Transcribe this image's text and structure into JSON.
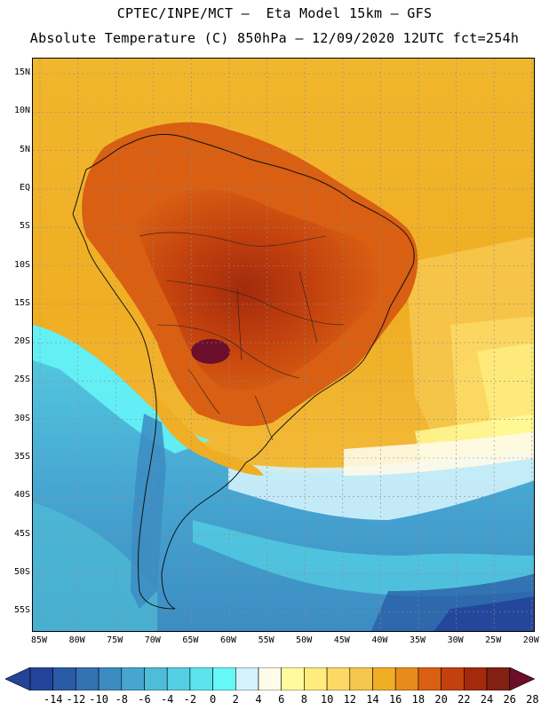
{
  "header": {
    "line1": "CPTEC/INPE/MCT –  Eta Model 15km – GFS",
    "line2": "Absolute Temperature (C) 850hPa – 12/09/2020 12UTC fct=254h"
  },
  "map": {
    "lat_labels": [
      "15N",
      "10N",
      "5N",
      "EQ",
      "5S",
      "10S",
      "15S",
      "20S",
      "25S",
      "30S",
      "35S",
      "40S",
      "45S",
      "50S",
      "55S"
    ],
    "lon_labels": [
      "85W",
      "80W",
      "75W",
      "70W",
      "65W",
      "60W",
      "55W",
      "50W",
      "45W",
      "40W",
      "35W",
      "30W",
      "25W",
      "20W"
    ],
    "ocean_regions": [
      "North Atlantic warm band",
      "Pacific cool band",
      "Southern ocean cold band"
    ],
    "hotspot": "Central South America warm core"
  },
  "colorbar": {
    "labels": [
      "-14",
      "-12",
      "-10",
      "-8",
      "-6",
      "-4",
      "-2",
      "0",
      "2",
      "4",
      "6",
      "8",
      "10",
      "12",
      "14",
      "16",
      "18",
      "20",
      "22",
      "24",
      "26",
      "28"
    ],
    "colors": [
      "#24449a",
      "#2a5ba6",
      "#3373b4",
      "#3c8cc2",
      "#46a5d1",
      "#4fbdd7",
      "#55cfe3",
      "#5be4ec",
      "#66f7f8",
      "#d2f2fc",
      "#fefbe8",
      "#fffb9c",
      "#feec7d",
      "#fcd964",
      "#f5c64c",
      "#f0ae24",
      "#e88a1c",
      "#d95f12",
      "#c3410e",
      "#a32a0c",
      "#822014",
      "#6b0e2a"
    ],
    "left_arrow_color": "#24449a",
    "right_arrow_color": "#6b0e2a"
  }
}
